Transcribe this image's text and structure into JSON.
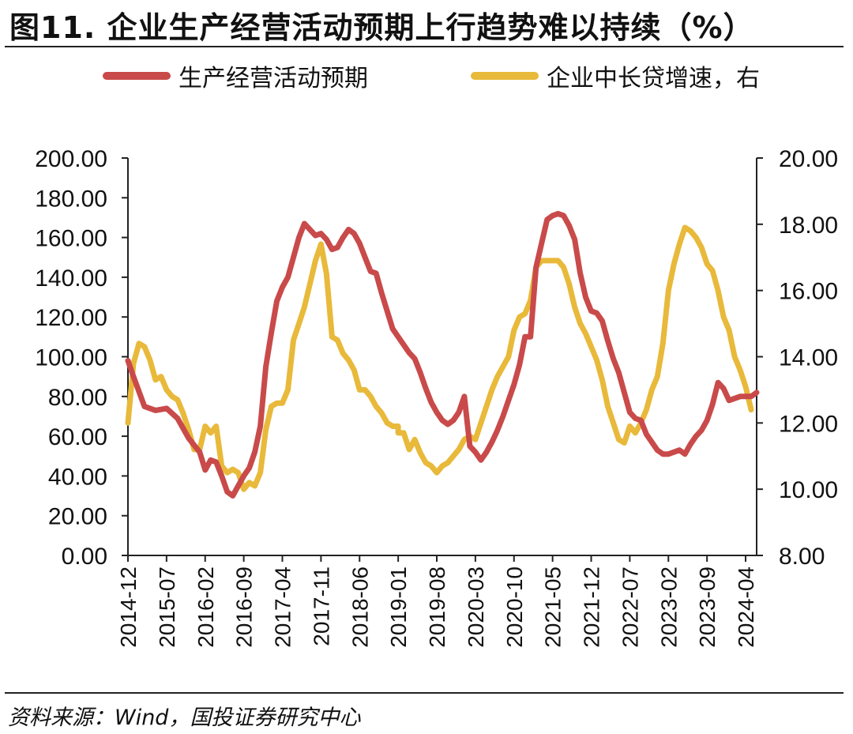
{
  "title": "图11. 企业生产经营活动预期上行趋势难以持续（%）",
  "source": "资料来源：Wind，国投证券研究中心",
  "colors": {
    "series1": "#c94a4a",
    "series2": "#e8b93a",
    "axis": "#222222"
  },
  "chart_data": {
    "type": "line",
    "title": "图11. 企业生产经营活动预期上行趋势难以持续（%）",
    "legend_position": "top",
    "grid": false,
    "x_tick_labels": [
      "2014-12",
      "2015-07",
      "2016-02",
      "2016-09",
      "2017-04",
      "2017-11",
      "2018-06",
      "2019-01",
      "2019-08",
      "2020-03",
      "2020-10",
      "2021-05",
      "2021-12",
      "2022-07",
      "2023-02",
      "2023-09",
      "2024-04"
    ],
    "y_left": {
      "min": 0,
      "max": 200,
      "ticks": [
        "0.00",
        "20.00",
        "40.00",
        "60.00",
        "80.00",
        "100.00",
        "120.00",
        "140.00",
        "160.00",
        "180.00",
        "200.00"
      ]
    },
    "y_right": {
      "min": 8,
      "max": 20,
      "ticks": [
        "8.00",
        "10.00",
        "12.00",
        "14.00",
        "16.00",
        "18.00",
        "20.00"
      ]
    },
    "series": [
      {
        "name": "生产经营活动预期",
        "axis": "left",
        "anchors": [
          [
            "2014-12",
            98
          ],
          [
            "2015-01",
            90
          ],
          [
            "2015-03",
            75
          ],
          [
            "2015-05",
            73
          ],
          [
            "2015-07",
            74
          ],
          [
            "2015-09",
            69
          ],
          [
            "2015-11",
            59
          ],
          [
            "2016-01",
            52
          ],
          [
            "2016-02",
            43
          ],
          [
            "2016-03",
            48
          ],
          [
            "2016-04",
            47
          ],
          [
            "2016-05",
            40
          ],
          [
            "2016-06",
            32
          ],
          [
            "2016-07",
            30
          ],
          [
            "2016-08",
            35
          ],
          [
            "2016-09",
            40
          ],
          [
            "2016-10",
            44
          ],
          [
            "2016-11",
            52
          ],
          [
            "2016-12",
            65
          ],
          [
            "2017-01",
            95
          ],
          [
            "2017-02",
            112
          ],
          [
            "2017-03",
            128
          ],
          [
            "2017-04",
            135
          ],
          [
            "2017-05",
            140
          ],
          [
            "2017-06",
            150
          ],
          [
            "2017-07",
            160
          ],
          [
            "2017-08",
            167
          ],
          [
            "2017-09",
            164
          ],
          [
            "2017-10",
            161
          ],
          [
            "2017-11",
            162
          ],
          [
            "2017-12",
            159
          ],
          [
            "2018-01",
            154
          ],
          [
            "2018-02",
            155
          ],
          [
            "2018-03",
            160
          ],
          [
            "2018-04",
            164
          ],
          [
            "2018-05",
            162
          ],
          [
            "2018-06",
            157
          ],
          [
            "2018-07",
            150
          ],
          [
            "2018-08",
            143
          ],
          [
            "2018-09",
            142
          ],
          [
            "2018-10",
            132
          ],
          [
            "2018-11",
            123
          ],
          [
            "2018-12",
            114
          ],
          [
            "2019-01",
            110
          ],
          [
            "2019-02",
            106
          ],
          [
            "2019-03",
            102
          ],
          [
            "2019-04",
            99
          ],
          [
            "2019-05",
            92
          ],
          [
            "2019-06",
            84
          ],
          [
            "2019-07",
            77
          ],
          [
            "2019-08",
            72
          ],
          [
            "2019-09",
            68
          ],
          [
            "2019-10",
            66
          ],
          [
            "2019-11",
            68
          ],
          [
            "2019-12",
            72
          ],
          [
            "2020-01",
            80
          ],
          [
            "2020-02",
            55
          ],
          [
            "2020-03",
            52
          ],
          [
            "2020-04",
            48
          ],
          [
            "2020-05",
            52
          ],
          [
            "2020-06",
            57
          ],
          [
            "2020-07",
            63
          ],
          [
            "2020-08",
            70
          ],
          [
            "2020-09",
            78
          ],
          [
            "2020-10",
            86
          ],
          [
            "2020-11",
            96
          ],
          [
            "2020-12",
            110
          ],
          [
            "2021-01",
            110
          ],
          [
            "2021-02",
            145
          ],
          [
            "2021-03",
            157
          ],
          [
            "2021-04",
            169
          ],
          [
            "2021-05",
            171
          ],
          [
            "2021-06",
            172
          ],
          [
            "2021-07",
            171
          ],
          [
            "2021-08",
            166
          ],
          [
            "2021-09",
            159
          ],
          [
            "2021-10",
            142
          ],
          [
            "2021-11",
            130
          ],
          [
            "2021-12",
            123
          ],
          [
            "2022-01",
            122
          ],
          [
            "2022-02",
            118
          ],
          [
            "2022-03",
            108
          ],
          [
            "2022-04",
            99
          ],
          [
            "2022-05",
            92
          ],
          [
            "2022-06",
            82
          ],
          [
            "2022-07",
            72
          ],
          [
            "2022-08",
            69
          ],
          [
            "2022-09",
            68
          ],
          [
            "2022-10",
            61
          ],
          [
            "2022-11",
            57
          ],
          [
            "2022-12",
            53
          ],
          [
            "2023-01",
            51
          ],
          [
            "2023-02",
            51
          ],
          [
            "2023-03",
            52
          ],
          [
            "2023-04",
            53
          ],
          [
            "2023-05",
            51
          ],
          [
            "2023-06",
            56
          ],
          [
            "2023-07",
            60
          ],
          [
            "2023-08",
            63
          ],
          [
            "2023-09",
            68
          ],
          [
            "2023-10",
            76
          ],
          [
            "2023-11",
            87
          ],
          [
            "2023-12",
            84
          ],
          [
            "2024-01",
            78
          ],
          [
            "2024-02",
            79
          ],
          [
            "2024-03",
            80
          ],
          [
            "2024-04",
            80
          ],
          [
            "2024-05",
            80
          ],
          [
            "2024-06",
            82
          ]
        ]
      },
      {
        "name": "企业中长贷增速，右",
        "axis": "right",
        "anchors": [
          [
            "2014-12",
            12
          ],
          [
            "2015-01",
            13.8
          ],
          [
            "2015-02",
            14.4
          ],
          [
            "2015-03",
            14.3
          ],
          [
            "2015-04",
            13.9
          ],
          [
            "2015-05",
            13.3
          ],
          [
            "2015-06",
            13.4
          ],
          [
            "2015-07",
            13
          ],
          [
            "2015-08",
            12.8
          ],
          [
            "2015-09",
            12.7
          ],
          [
            "2015-10",
            12.3
          ],
          [
            "2015-11",
            11.8
          ],
          [
            "2015-12",
            11.2
          ],
          [
            "2016-01",
            11.2
          ],
          [
            "2016-02",
            11.9
          ],
          [
            "2016-03",
            11.7
          ],
          [
            "2016-04",
            11.9
          ],
          [
            "2016-05",
            10.7
          ],
          [
            "2016-06",
            10.5
          ],
          [
            "2016-07",
            10.6
          ],
          [
            "2016-08",
            10.5
          ],
          [
            "2016-09",
            10
          ],
          [
            "2016-10",
            10.2
          ],
          [
            "2016-11",
            10.1
          ],
          [
            "2016-12",
            10.5
          ],
          [
            "2017-01",
            11.8
          ],
          [
            "2017-02",
            12.5
          ],
          [
            "2017-03",
            12.6
          ],
          [
            "2017-04",
            12.6
          ],
          [
            "2017-05",
            13
          ],
          [
            "2017-06",
            14.5
          ],
          [
            "2017-07",
            15
          ],
          [
            "2017-08",
            15.5
          ],
          [
            "2017-09",
            16.2
          ],
          [
            "2017-10",
            16.9
          ],
          [
            "2017-11",
            17.4
          ],
          [
            "2017-12",
            16.5
          ],
          [
            "2018-01",
            14.6
          ],
          [
            "2018-02",
            14.5
          ],
          [
            "2018-03",
            14.1
          ],
          [
            "2018-04",
            13.9
          ],
          [
            "2018-05",
            13.6
          ],
          [
            "2018-06",
            13
          ],
          [
            "2018-07",
            13
          ],
          [
            "2018-08",
            12.8
          ],
          [
            "2018-09",
            12.5
          ],
          [
            "2018-10",
            12.3
          ],
          [
            "2018-11",
            12
          ],
          [
            "2018-12",
            11.9
          ],
          [
            "2018-13",
            11.9
          ],
          [
            "2019-01",
            11.7
          ],
          [
            "2019-02",
            11.7
          ],
          [
            "2019-03",
            11.2
          ],
          [
            "2019-04",
            11.5
          ],
          [
            "2019-05",
            11.1
          ],
          [
            "2019-06",
            10.8
          ],
          [
            "2019-07",
            10.7
          ],
          [
            "2019-08",
            10.5
          ],
          [
            "2019-09",
            10.7
          ],
          [
            "2019-10",
            10.8
          ],
          [
            "2019-11",
            11
          ],
          [
            "2019-12",
            11.2
          ],
          [
            "2020-01",
            11.5
          ],
          [
            "2020-02",
            11.6
          ],
          [
            "2020-03",
            11.5
          ],
          [
            "2020-04",
            12
          ],
          [
            "2020-05",
            12.5
          ],
          [
            "2020-06",
            13
          ],
          [
            "2020-07",
            13.4
          ],
          [
            "2020-08",
            13.7
          ],
          [
            "2020-09",
            14
          ],
          [
            "2020-10",
            14.8
          ],
          [
            "2020-11",
            15.2
          ],
          [
            "2020-12",
            15.3
          ],
          [
            "2021-01",
            15.7
          ],
          [
            "2021-02",
            16.7
          ],
          [
            "2021-03",
            16.9
          ],
          [
            "2021-04",
            16.9
          ],
          [
            "2021-05",
            16.9
          ],
          [
            "2021-06",
            16.9
          ],
          [
            "2021-07",
            16.7
          ],
          [
            "2021-08",
            16.2
          ],
          [
            "2021-09",
            15.5
          ],
          [
            "2021-10",
            15
          ],
          [
            "2021-11",
            14.7
          ],
          [
            "2021-12",
            14.3
          ],
          [
            "2022-01",
            13.9
          ],
          [
            "2022-02",
            13.3
          ],
          [
            "2022-03",
            12.5
          ],
          [
            "2022-04",
            12
          ],
          [
            "2022-05",
            11.5
          ],
          [
            "2022-06",
            11.4
          ],
          [
            "2022-07",
            11.9
          ],
          [
            "2022-08",
            11.7
          ],
          [
            "2022-09",
            12
          ],
          [
            "2022-10",
            12.4
          ],
          [
            "2022-11",
            13
          ],
          [
            "2022-12",
            13.4
          ],
          [
            "2023-01",
            14.4
          ],
          [
            "2023-02",
            16
          ],
          [
            "2023-03",
            16.8
          ],
          [
            "2023-04",
            17.4
          ],
          [
            "2023-05",
            17.9
          ],
          [
            "2023-06",
            17.8
          ],
          [
            "2023-07",
            17.6
          ],
          [
            "2023-08",
            17.3
          ],
          [
            "2023-09",
            16.8
          ],
          [
            "2023-10",
            16.6
          ],
          [
            "2023-11",
            16
          ],
          [
            "2023-12",
            15.2
          ],
          [
            "2024-01",
            14.8
          ],
          [
            "2024-02",
            14
          ],
          [
            "2024-03",
            13.6
          ],
          [
            "2024-04",
            13.1
          ],
          [
            "2024-05",
            12.4
          ]
        ]
      }
    ]
  }
}
